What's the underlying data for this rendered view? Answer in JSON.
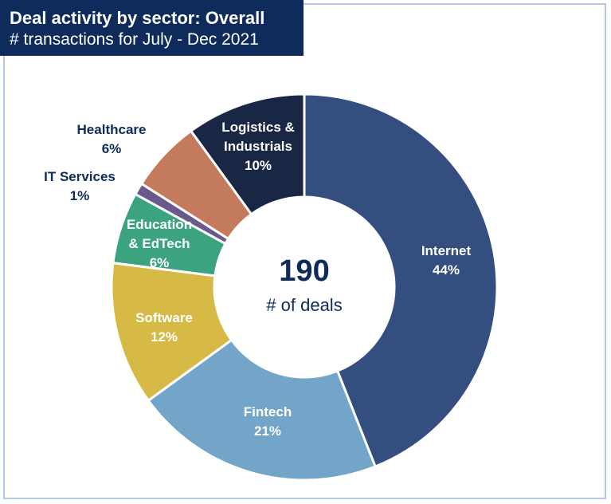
{
  "chart_data": {
    "type": "pie",
    "title": "Deal activity by sector: Overall",
    "subtitle": "# transactions for July - Dec 2021",
    "center_value": "190",
    "center_label": "# of deals",
    "slices": [
      {
        "name": "Internet",
        "value": 44,
        "label": "44%",
        "color": "#344e80"
      },
      {
        "name": "Fintech",
        "value": 21,
        "label": "21%",
        "color": "#72a5c8"
      },
      {
        "name": "Software",
        "value": 12,
        "label": "12%",
        "color": "#d7ba45"
      },
      {
        "name": "Education & EdTech",
        "value": 6,
        "label": "6%",
        "color": "#3ca381"
      },
      {
        "name": "IT Services",
        "value": 1,
        "label": "1%",
        "color": "#6a5a8c"
      },
      {
        "name": "Healthcare",
        "value": 6,
        "label": "6%",
        "color": "#c47a5d"
      },
      {
        "name": "Logistics & Industrials",
        "value": 10,
        "label": "10%",
        "color": "#1a2744"
      }
    ]
  }
}
